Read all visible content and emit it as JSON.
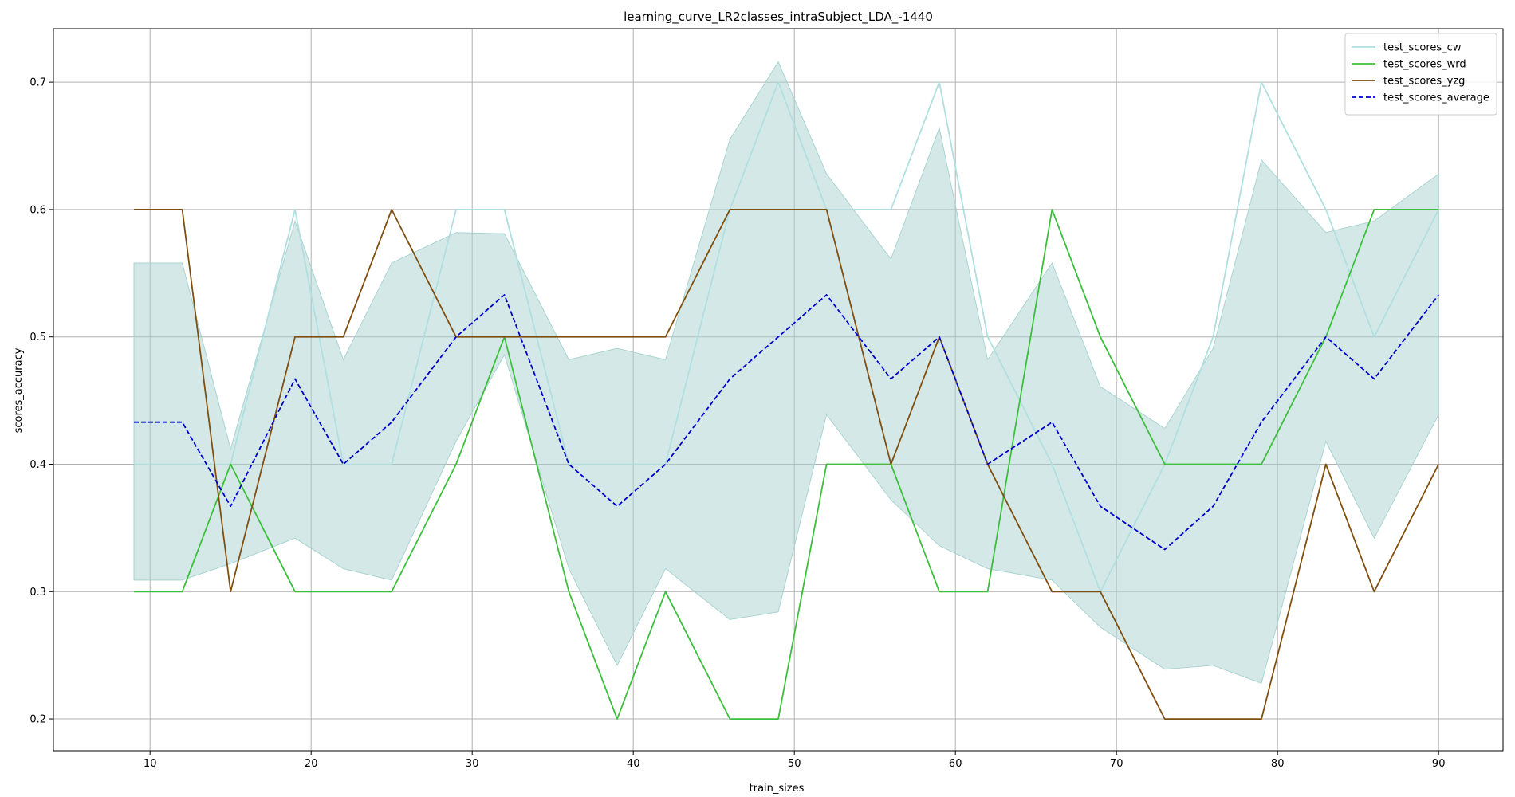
{
  "chart_data": {
    "type": "line",
    "title": "learning_curve_LR2classes_intraSubject_LDA_-1440",
    "xlabel": "train_sizes",
    "ylabel": "scores_accuracy",
    "xlim": [
      4,
      94
    ],
    "ylim": [
      0.175,
      0.742
    ],
    "xticks": [
      10,
      20,
      30,
      40,
      50,
      60,
      70,
      80,
      90
    ],
    "yticks": [
      0.2,
      0.3,
      0.4,
      0.5,
      0.6,
      0.7
    ],
    "grid": true,
    "legend_position": "top-right",
    "x": [
      9,
      12,
      15,
      19,
      22,
      25,
      29,
      32,
      36,
      39,
      42,
      46,
      49,
      52,
      56,
      59,
      62,
      66,
      69,
      73,
      76,
      79,
      83,
      86,
      90
    ],
    "series": [
      {
        "name": "test_scores_cw",
        "color": "#b0dfe0",
        "style": "solid",
        "values": [
          0.4,
          0.4,
          0.4,
          0.6,
          0.4,
          0.4,
          0.6,
          0.6,
          0.4,
          0.4,
          0.4,
          0.6,
          0.7,
          0.6,
          0.6,
          0.7,
          0.5,
          0.4,
          0.3,
          0.4,
          0.5,
          0.7,
          0.6,
          0.5,
          0.6
        ]
      },
      {
        "name": "test_scores_wrd",
        "color": "#3cbf3c",
        "style": "solid",
        "values": [
          0.3,
          0.3,
          0.4,
          0.3,
          0.3,
          0.3,
          0.4,
          0.5,
          0.3,
          0.2,
          0.3,
          0.2,
          0.2,
          0.4,
          0.4,
          0.3,
          0.3,
          0.6,
          0.5,
          0.4,
          0.4,
          0.4,
          0.5,
          0.6,
          0.6
        ]
      },
      {
        "name": "test_scores_yzg",
        "color": "#7f4f10",
        "style": "solid",
        "values": [
          0.6,
          0.6,
          0.3,
          0.5,
          0.5,
          0.6,
          0.5,
          0.5,
          0.5,
          0.5,
          0.5,
          0.6,
          0.6,
          0.6,
          0.4,
          0.5,
          0.4,
          0.3,
          0.3,
          0.2,
          0.2,
          0.2,
          0.4,
          0.3,
          0.4
        ]
      },
      {
        "name": "test_scores_average",
        "color": "#0000cc",
        "style": "dashed",
        "values": [
          0.433,
          0.433,
          0.367,
          0.467,
          0.4,
          0.433,
          0.5,
          0.533,
          0.4,
          0.367,
          0.4,
          0.467,
          0.5,
          0.533,
          0.467,
          0.5,
          0.4,
          0.433,
          0.367,
          0.333,
          0.367,
          0.433,
          0.5,
          0.467,
          0.533
        ]
      }
    ],
    "band": {
      "color": "#a9d4d0",
      "lower": [
        0.309,
        0.309,
        0.322,
        0.342,
        0.318,
        0.309,
        0.418,
        0.486,
        0.318,
        0.242,
        0.318,
        0.278,
        0.284,
        0.439,
        0.372,
        0.336,
        0.318,
        0.309,
        0.272,
        0.239,
        0.242,
        0.228,
        0.418,
        0.342,
        0.439
      ],
      "upper": [
        0.558,
        0.558,
        0.412,
        0.591,
        0.482,
        0.558,
        0.582,
        0.581,
        0.482,
        0.491,
        0.482,
        0.655,
        0.716,
        0.628,
        0.561,
        0.664,
        0.482,
        0.558,
        0.461,
        0.428,
        0.491,
        0.639,
        0.582,
        0.591,
        0.628
      ]
    }
  }
}
